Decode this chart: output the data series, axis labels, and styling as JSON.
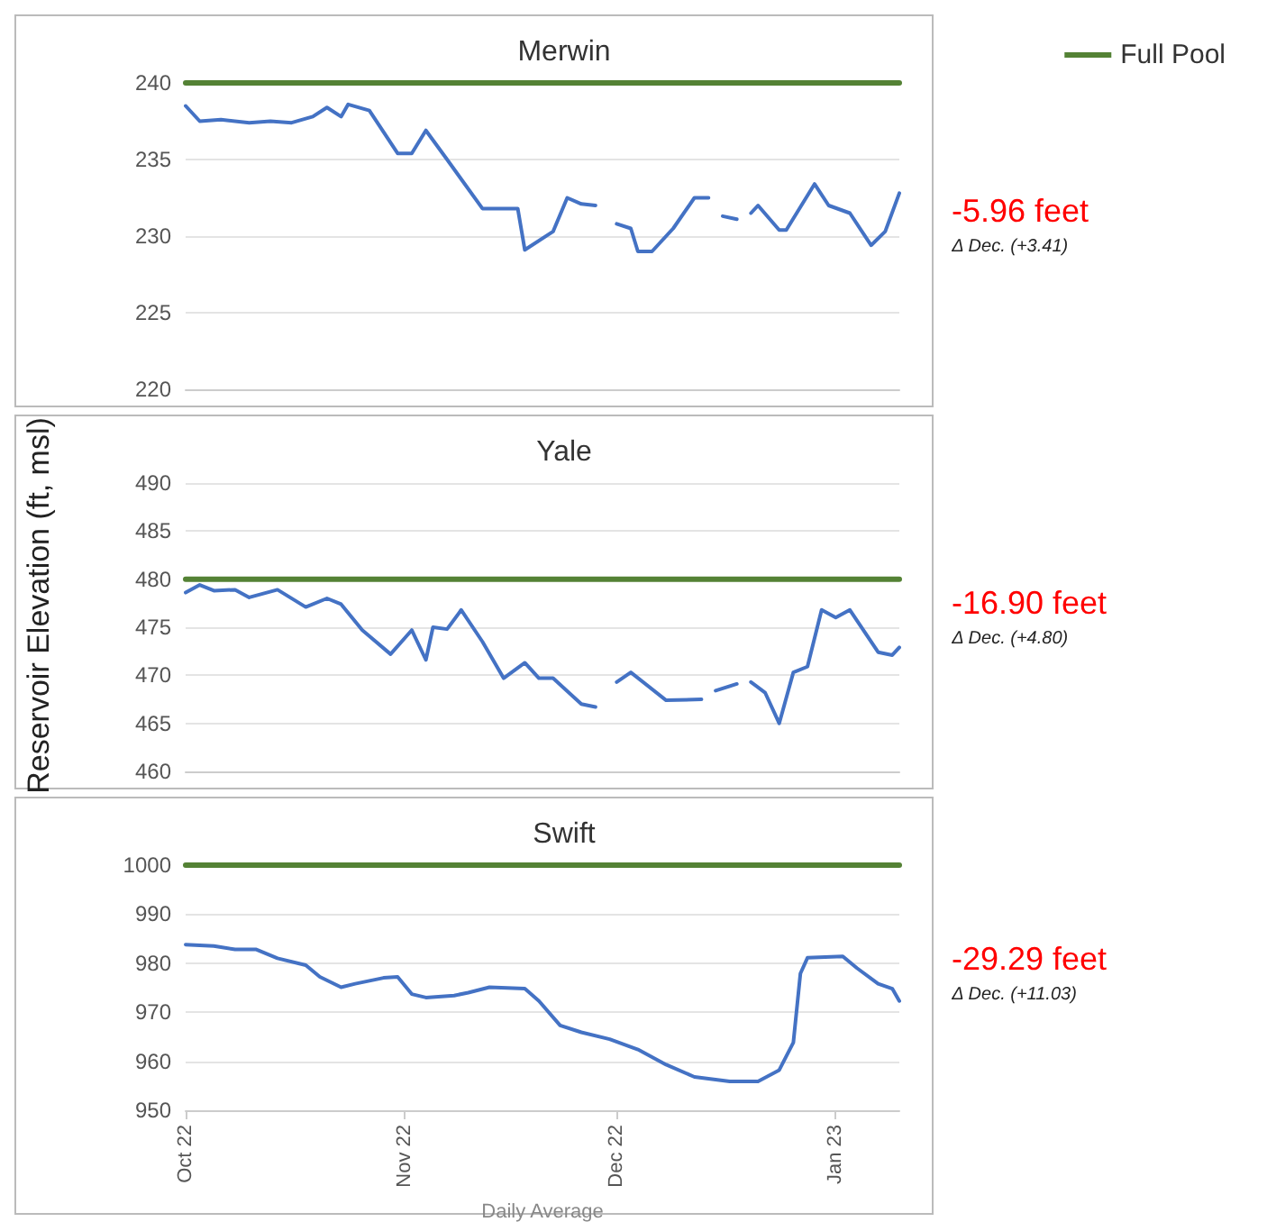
{
  "chart_data": [
    {
      "type": "line",
      "title": "Merwin",
      "xlim": [
        "2022-10-01",
        "2023-01-10"
      ],
      "ylim": [
        220,
        240
      ],
      "yticks": [
        220,
        225,
        230,
        235,
        240
      ],
      "grid": "y",
      "legend": "top right",
      "tick_labels": "y",
      "marker": "none",
      "line_style": "solid",
      "annotations": [
        "-5.96 feet",
        "Δ Dec. (+3.41)"
      ],
      "series": [
        {
          "name": "Full Pool",
          "color": "#548235",
          "x": [
            "2022-10-01",
            "2023-01-10"
          ],
          "values": [
            240,
            240
          ]
        },
        {
          "color": "#4472c4",
          "x": [
            "2022-10-01",
            "2022-10-03",
            "2022-10-06",
            "2022-10-10",
            "2022-10-13",
            "2022-10-16",
            "2022-10-19",
            "2022-10-21",
            "2022-10-23",
            "2022-10-24",
            "2022-10-27",
            "2022-10-31",
            "2022-11-02",
            "2022-11-04",
            "2022-11-07",
            "2022-11-12",
            "2022-11-17",
            "2022-11-18",
            "2022-11-22",
            "2022-11-24",
            "2022-11-26",
            "2022-11-28",
            "2022-11-29",
            "2022-12-01",
            "2022-12-03",
            "2022-12-04",
            "2022-12-06",
            "2022-12-09",
            "2022-12-12",
            "2022-12-14",
            "2022-12-15",
            "2022-12-16",
            "2022-12-18",
            "2022-12-19",
            "2022-12-20",
            "2022-12-21",
            "2022-12-24",
            "2022-12-25",
            "2022-12-29",
            "2022-12-31",
            "2023-01-03",
            "2023-01-06",
            "2023-01-08",
            "2023-01-10"
          ],
          "values": [
            238.5,
            237.5,
            237.6,
            237.4,
            237.5,
            237.4,
            237.8,
            238.4,
            237.8,
            238.6,
            238.2,
            235.4,
            235.4,
            236.9,
            235.0,
            231.8,
            231.8,
            229.1,
            230.3,
            232.5,
            232.1,
            232.0,
            null,
            230.8,
            230.5,
            229.0,
            229.0,
            230.5,
            232.5,
            232.5,
            null,
            231.3,
            231.1,
            null,
            231.5,
            232.0,
            230.4,
            230.4,
            233.4,
            232.0,
            231.5,
            229.4,
            230.3,
            232.8
          ]
        }
      ]
    },
    {
      "type": "line",
      "title": "Yale",
      "ylabel": "Reservoir Elevation (ft, msl)",
      "xlim": [
        "2022-10-01",
        "2023-01-10"
      ],
      "ylim": [
        460,
        490
      ],
      "yticks": [
        460,
        465,
        470,
        475,
        480,
        485,
        490
      ],
      "grid": "y",
      "tick_labels": "y",
      "marker": "none",
      "line_style": "solid",
      "annotations": [
        "-16.90 feet",
        "Δ Dec. (+4.80)"
      ],
      "series": [
        {
          "color": "#548235",
          "x": [
            "2022-10-01",
            "2023-01-10"
          ],
          "values": [
            480,
            480
          ]
        },
        {
          "color": "#4472c4",
          "x": [
            "2022-10-01",
            "2022-10-03",
            "2022-10-05",
            "2022-10-08",
            "2022-10-10",
            "2022-10-14",
            "2022-10-18",
            "2022-10-21",
            "2022-10-23",
            "2022-10-26",
            "2022-10-30",
            "2022-11-02",
            "2022-11-04",
            "2022-11-05",
            "2022-11-07",
            "2022-11-09",
            "2022-11-12",
            "2022-11-15",
            "2022-11-18",
            "2022-11-20",
            "2022-11-22",
            "2022-11-26",
            "2022-11-28",
            "2022-11-29",
            "2022-12-01",
            "2022-12-03",
            "2022-12-08",
            "2022-12-13",
            "2022-12-14",
            "2022-12-15",
            "2022-12-18",
            "2022-12-19",
            "2022-12-20",
            "2022-12-22",
            "2022-12-24",
            "2022-12-26",
            "2022-12-28",
            "2022-12-30",
            "2023-01-01",
            "2023-01-03",
            "2023-01-07",
            "2023-01-09",
            "2023-01-10"
          ],
          "values": [
            478.6,
            479.4,
            478.8,
            478.9,
            478.1,
            478.9,
            477.1,
            478.0,
            477.4,
            474.7,
            472.2,
            474.7,
            471.6,
            475.0,
            474.8,
            476.8,
            473.5,
            469.7,
            471.3,
            469.7,
            469.7,
            467.0,
            466.7,
            null,
            469.3,
            470.3,
            467.4,
            467.5,
            null,
            468.4,
            469.1,
            null,
            469.3,
            468.2,
            465.0,
            470.3,
            470.9,
            476.8,
            476.0,
            476.8,
            472.4,
            472.1,
            472.9
          ]
        }
      ]
    },
    {
      "type": "line",
      "title": "Swift",
      "xlabel": "Daily Average",
      "xlim": [
        "2022-10-01",
        "2023-01-10"
      ],
      "xticks": [
        {
          "value": "2022-10-01",
          "label": "Oct 22"
        },
        {
          "value": "2022-11-01",
          "label": "Nov 22"
        },
        {
          "value": "2022-12-01",
          "label": "Dec 22"
        },
        {
          "value": "2023-01-01",
          "label": "Jan 23"
        }
      ],
      "ylim": [
        950,
        1000
      ],
      "yticks": [
        950,
        960,
        970,
        980,
        990,
        1000
      ],
      "grid": "y",
      "marker": "none",
      "line_style": "solid",
      "annotations": [
        "-29.29 feet",
        "Δ Dec. (+11.03)"
      ],
      "series": [
        {
          "color": "#548235",
          "x": [
            "2022-10-01",
            "2023-01-10"
          ],
          "values": [
            1000,
            1000
          ]
        },
        {
          "color": "#4472c4",
          "x": [
            "2022-10-01",
            "2022-10-05",
            "2022-10-08",
            "2022-10-11",
            "2022-10-14",
            "2022-10-18",
            "2022-10-20",
            "2022-10-23",
            "2022-10-25",
            "2022-10-29",
            "2022-10-31",
            "2022-11-02",
            "2022-11-04",
            "2022-11-08",
            "2022-11-10",
            "2022-11-13",
            "2022-11-18",
            "2022-11-20",
            "2022-11-23",
            "2022-11-26",
            "2022-11-30",
            "2022-12-04",
            "2022-12-08",
            "2022-12-12",
            "2022-12-17",
            "2022-12-21",
            "2022-12-24",
            "2022-12-26",
            "2022-12-27",
            "2022-12-28",
            "2023-01-02",
            "2023-01-04",
            "2023-01-07",
            "2023-01-09",
            "2023-01-10"
          ],
          "values": [
            983.8,
            983.5,
            982.8,
            982.8,
            981.0,
            979.6,
            977.2,
            975.1,
            975.8,
            977.0,
            977.2,
            973.7,
            973.0,
            973.4,
            974.0,
            975.1,
            974.8,
            972.3,
            967.3,
            965.9,
            964.5,
            962.4,
            959.3,
            956.8,
            955.9,
            955.9,
            958.2,
            963.8,
            977.9,
            981.1,
            981.4,
            979.0,
            975.8,
            974.8,
            972.3
          ]
        }
      ]
    }
  ]
}
